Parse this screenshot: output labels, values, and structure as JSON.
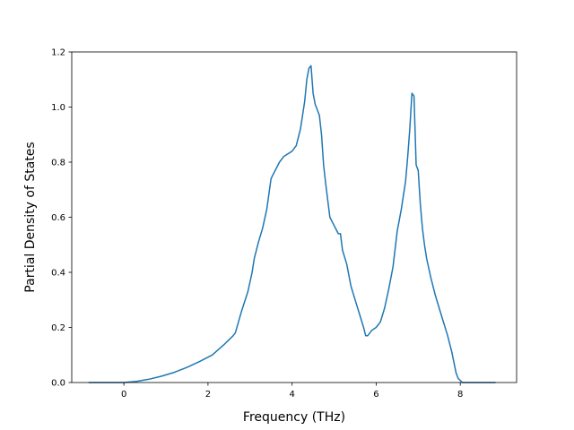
{
  "chart_data": {
    "type": "line",
    "title": "",
    "xlabel": "Frequency (THz)",
    "ylabel": "Partial Density of States",
    "xlim": [
      -1.24,
      9.34
    ],
    "ylim": [
      0.0,
      1.2
    ],
    "xticks": [
      0,
      2,
      4,
      6,
      8
    ],
    "xtick_labels": [
      "0",
      "2",
      "4",
      "6",
      "8"
    ],
    "yticks": [
      0.0,
      0.2,
      0.4,
      0.6,
      0.8,
      1.0,
      1.2
    ],
    "ytick_labels": [
      "0.0",
      "0.2",
      "0.4",
      "0.6",
      "0.8",
      "1.0",
      "1.2"
    ],
    "grid": false,
    "colors": {
      "line": "#1f77b4"
    },
    "series": [
      {
        "x": [
          -0.84,
          -0.4,
          0.0,
          0.3,
          0.6,
          0.9,
          1.2,
          1.5,
          1.8,
          2.1,
          2.4,
          2.6,
          2.65,
          2.8,
          2.95,
          3.05,
          3.1,
          3.2,
          3.3,
          3.4,
          3.5,
          3.6,
          3.7,
          3.8,
          3.9,
          4.0,
          4.1,
          4.2,
          4.3,
          4.35,
          4.4,
          4.45,
          4.5,
          4.55,
          4.6,
          4.65,
          4.7,
          4.75,
          4.8,
          4.9,
          5.0,
          5.1,
          5.15,
          5.2,
          5.3,
          5.4,
          5.5,
          5.6,
          5.7,
          5.75,
          5.8,
          5.85,
          5.9,
          6.0,
          6.1,
          6.2,
          6.3,
          6.4,
          6.5,
          6.6,
          6.7,
          6.75,
          6.8,
          6.85,
          6.9,
          6.95,
          7.0,
          7.05,
          7.1,
          7.15,
          7.2,
          7.3,
          7.4,
          7.5,
          7.6,
          7.7,
          7.8,
          7.9,
          7.95,
          8.05,
          8.2,
          8.5,
          8.84
        ],
        "y": [
          0.0,
          0.0,
          0.0,
          0.004,
          0.012,
          0.023,
          0.037,
          0.055,
          0.076,
          0.1,
          0.14,
          0.17,
          0.18,
          0.26,
          0.33,
          0.4,
          0.45,
          0.51,
          0.56,
          0.63,
          0.74,
          0.77,
          0.8,
          0.82,
          0.83,
          0.84,
          0.86,
          0.92,
          1.02,
          1.1,
          1.14,
          1.15,
          1.05,
          1.01,
          0.99,
          0.97,
          0.9,
          0.79,
          0.72,
          0.6,
          0.57,
          0.54,
          0.54,
          0.48,
          0.43,
          0.35,
          0.3,
          0.25,
          0.2,
          0.17,
          0.17,
          0.18,
          0.19,
          0.2,
          0.22,
          0.27,
          0.34,
          0.42,
          0.55,
          0.63,
          0.73,
          0.82,
          0.92,
          1.05,
          1.04,
          0.79,
          0.77,
          0.65,
          0.56,
          0.5,
          0.45,
          0.38,
          0.32,
          0.27,
          0.22,
          0.17,
          0.11,
          0.035,
          0.015,
          0.0,
          0.0,
          0.0,
          0.0
        ]
      }
    ]
  }
}
